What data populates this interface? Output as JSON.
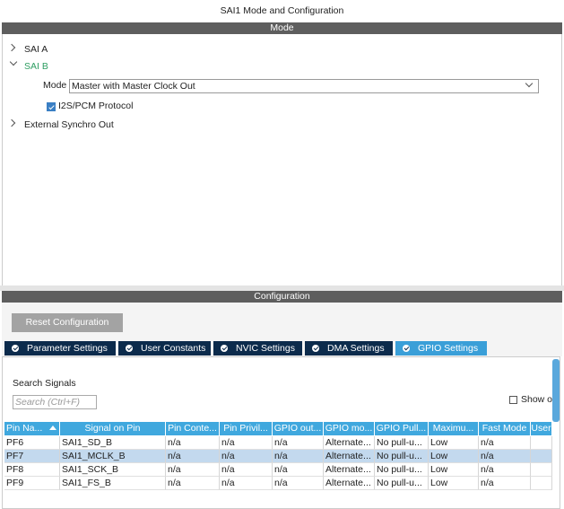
{
  "window_title": "SAI1 Mode and Configuration",
  "mode_header": "Mode",
  "mode_panel": {
    "sai_a": "SAI A",
    "sai_b": "SAI B",
    "mode_label": "Mode",
    "mode_value": "Master with Master Clock Out",
    "i2s_checkbox": {
      "label": "I2S/PCM Protocol",
      "checked": true
    },
    "external_synchro": "External Synchro Out"
  },
  "config_header": "Configuration",
  "reset_button": "Reset Configuration",
  "tabs": [
    {
      "label": "Parameter Settings",
      "active": false
    },
    {
      "label": "User Constants",
      "active": false
    },
    {
      "label": "NVIC Settings",
      "active": false
    },
    {
      "label": "DMA Settings",
      "active": false
    },
    {
      "label": "GPIO Settings",
      "active": true
    }
  ],
  "search": {
    "label": "Search Signals",
    "placeholder": "Search (Ctrl+F)"
  },
  "show_checkbox": {
    "label": "Show o",
    "checked": false
  },
  "table": {
    "columns": [
      "Pin Na...",
      "Signal on Pin",
      "Pin Conte...",
      "Pin Privil...",
      "GPIO out...",
      "GPIO mo...",
      "GPIO Pull...",
      "Maximu...",
      "Fast Mode",
      "User"
    ],
    "rows": [
      {
        "selected": false,
        "cells": [
          "PF6",
          "SAI1_SD_B",
          "n/a",
          "n/a",
          "n/a",
          "Alternate...",
          "No pull-u...",
          "Low",
          "n/a",
          ""
        ]
      },
      {
        "selected": true,
        "cells": [
          "PF7",
          "SAI1_MCLK_B",
          "n/a",
          "n/a",
          "n/a",
          "Alternate...",
          "No pull-u...",
          "Low",
          "n/a",
          ""
        ]
      },
      {
        "selected": false,
        "cells": [
          "PF8",
          "SAI1_SCK_B",
          "n/a",
          "n/a",
          "n/a",
          "Alternate...",
          "No pull-u...",
          "Low",
          "n/a",
          ""
        ]
      },
      {
        "selected": false,
        "cells": [
          "PF9",
          "SAI1_FS_B",
          "n/a",
          "n/a",
          "n/a",
          "Alternate...",
          "No pull-u...",
          "Low",
          "n/a",
          ""
        ]
      }
    ]
  }
}
